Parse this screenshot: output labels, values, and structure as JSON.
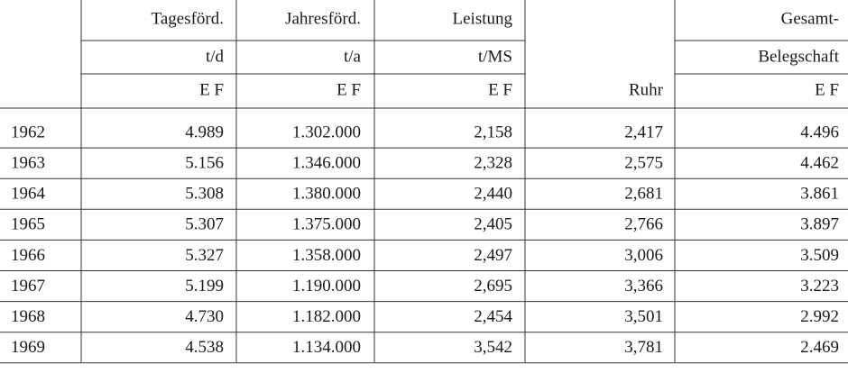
{
  "table": {
    "header": [
      [
        "",
        "Tagesförd.",
        "Jahresförd.",
        "Leistung",
        "",
        "Gesamt-"
      ],
      [
        "",
        "t/d",
        "t/a",
        "t/MS",
        "",
        "Belegschaft"
      ],
      [
        "",
        "E F",
        "E F",
        "E F",
        "Ruhr",
        "E F"
      ]
    ],
    "rows": [
      [
        "1962",
        "4.989",
        "1.302.000",
        "2,158",
        "2,417",
        "4.496"
      ],
      [
        "1963",
        "5.156",
        "1.346.000",
        "2,328",
        "2,575",
        "4.462"
      ],
      [
        "1964",
        "5.308",
        "1.380.000",
        "2,440",
        "2,681",
        "3.861"
      ],
      [
        "1965",
        "5.307",
        "1.375.000",
        "2,405",
        "2,766",
        "3.897"
      ],
      [
        "1966",
        "5.327",
        "1.358.000",
        "2,497",
        "3,006",
        "3.509"
      ],
      [
        "1967",
        "5.199",
        "1.190.000",
        "2,695",
        "3,366",
        "3.223"
      ],
      [
        "1968",
        "4.730",
        "1.182.000",
        "2,454",
        "3,501",
        "2.992"
      ],
      [
        "1969",
        "4.538",
        "1.134.000",
        "3,542",
        "3,781",
        "2.469"
      ]
    ]
  }
}
